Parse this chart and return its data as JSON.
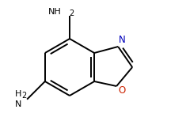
{
  "bg_color": "#ffffff",
  "bond_color": "#000000",
  "N_color": "#0000bb",
  "O_color": "#cc2200",
  "line_width": 1.4,
  "figsize": [
    2.35,
    1.67
  ],
  "dpi": 100,
  "xlim": [
    0,
    235
  ],
  "ylim": [
    0,
    167
  ]
}
